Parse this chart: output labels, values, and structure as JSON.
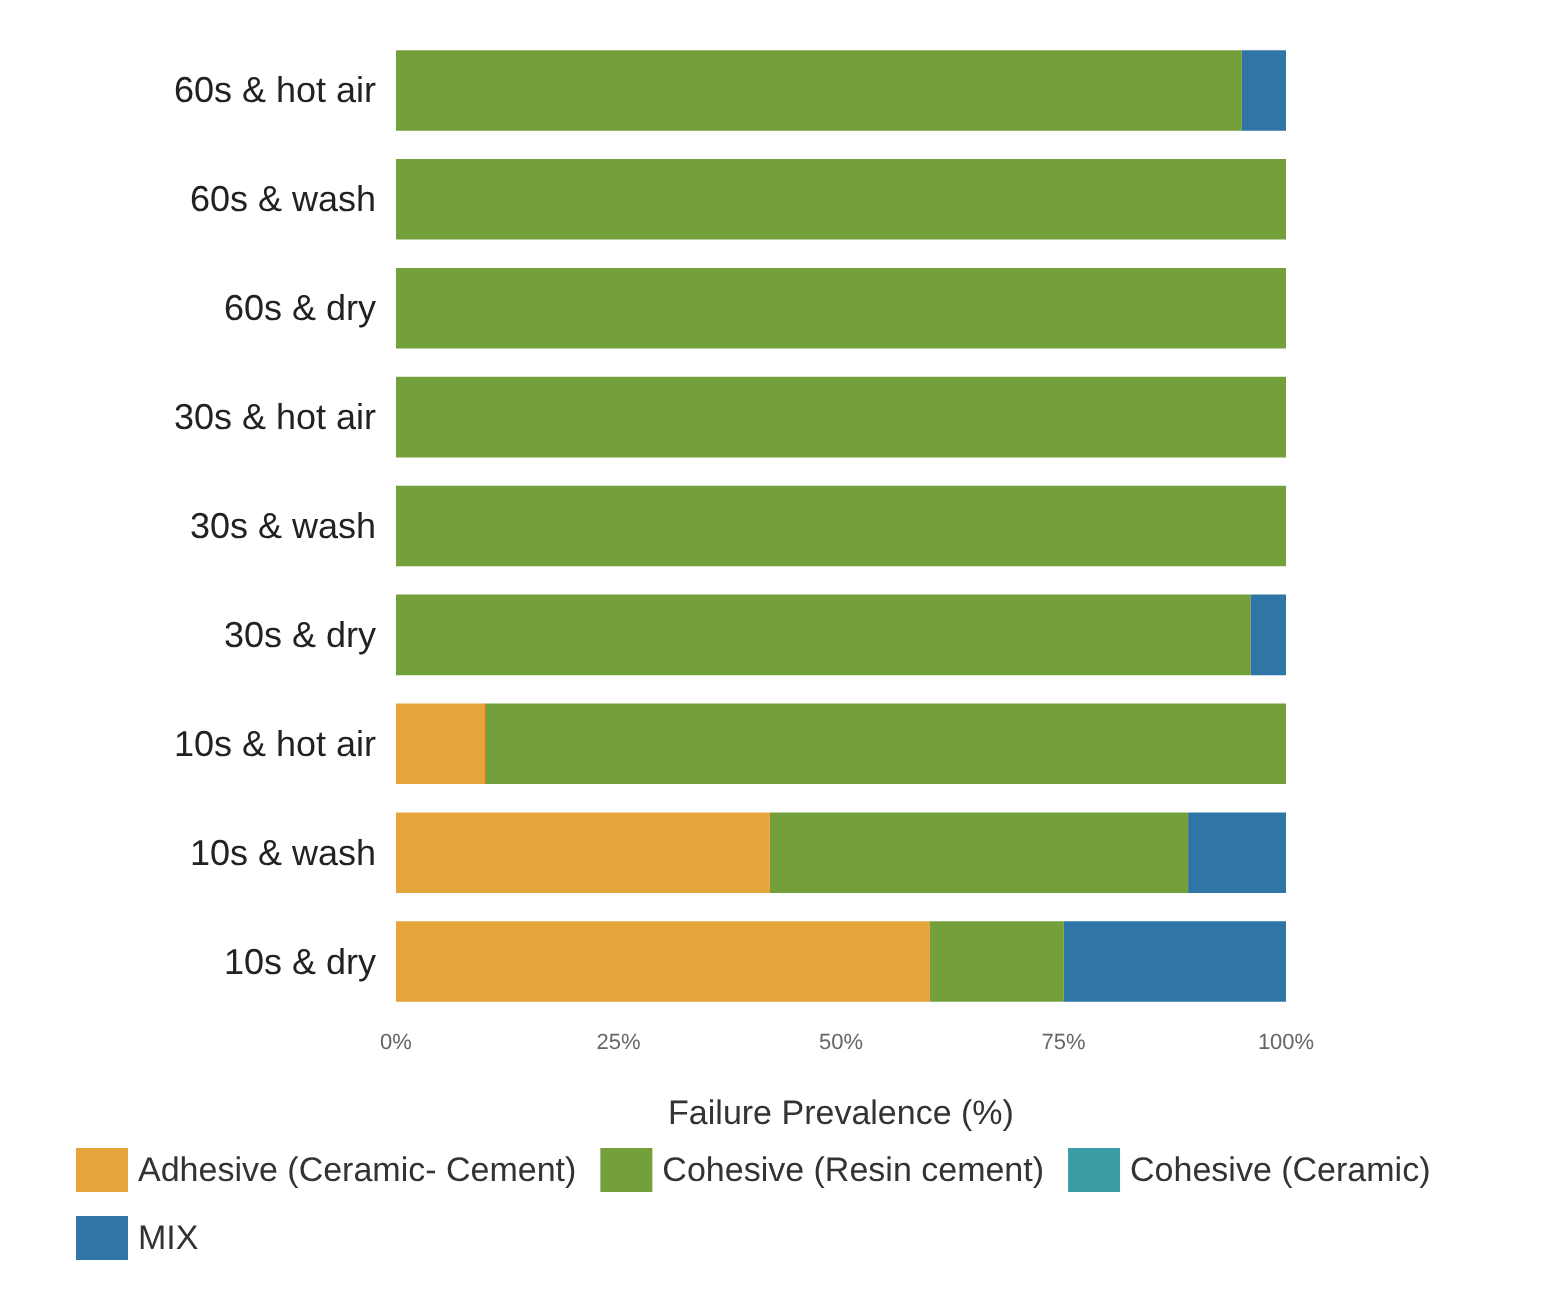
{
  "chart_data": {
    "type": "bar",
    "orientation": "horizontal",
    "stacked": true,
    "xlabel": "Failure Prevalence (%)",
    "categories": [
      "60s & hot air",
      "60s & wash",
      "60s & dry",
      "30s & hot air",
      "30s & wash",
      "30s & dry",
      "10s & hot air",
      "10s & wash",
      "10s & dry"
    ],
    "series": [
      {
        "name": "Adhesive (Ceramic- Cement)",
        "color": "#e5a43c",
        "values": [
          0,
          0,
          0,
          0,
          0,
          0,
          10,
          42,
          60
        ]
      },
      {
        "name": "Cohesive (Resin cement)",
        "color": "#74a03c",
        "values": [
          95,
          100,
          100,
          100,
          100,
          96,
          90,
          47,
          15
        ]
      },
      {
        "name": "Cohesive (Ceramic)",
        "color": "#3b9ea6",
        "values": [
          0,
          0,
          0,
          0,
          0,
          0,
          0,
          0,
          0
        ]
      },
      {
        "name": "MIX",
        "color": "#2f76a6",
        "values": [
          5,
          0,
          0,
          0,
          0,
          4,
          0,
          11,
          25
        ]
      }
    ],
    "xlim": [
      0,
      100
    ],
    "xticks": [
      {
        "value": 0,
        "label": "0%"
      },
      {
        "value": 25,
        "label": "25%"
      },
      {
        "value": 50,
        "label": "50%"
      },
      {
        "value": 75,
        "label": "75%"
      },
      {
        "value": 100,
        "label": "100%"
      }
    ],
    "grid": false,
    "legend": "bottom"
  }
}
